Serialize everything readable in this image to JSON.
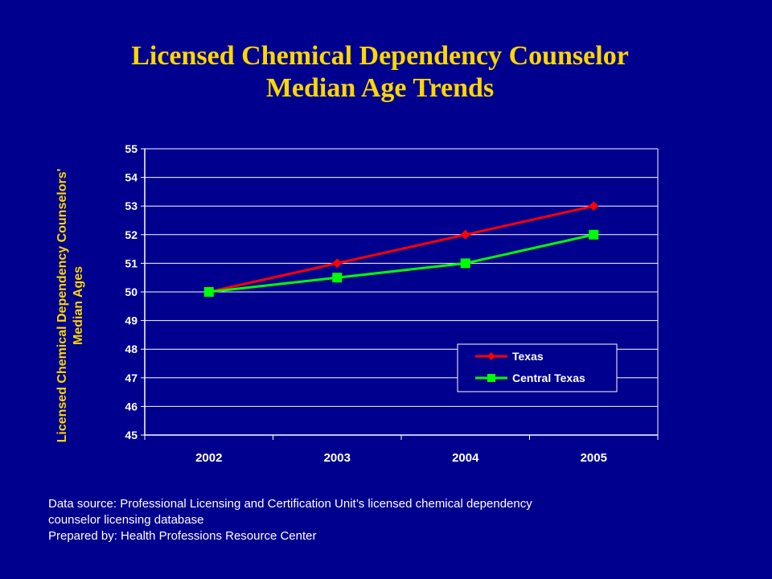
{
  "colors": {
    "background": "#00008f",
    "title": "#ffd700",
    "texas": "#ff0000",
    "central_texas": "#00ff00"
  },
  "chart_data": {
    "type": "line",
    "title_lines": [
      "Licensed Chemical Dependency Counselor",
      "Median Age Trends"
    ],
    "ylabel_lines": [
      "Licensed Chemical Dependency Counselors'",
      "Median Ages"
    ],
    "xlabel": "",
    "categories": [
      "2002",
      "2003",
      "2004",
      "2005"
    ],
    "yticks": [
      "45",
      "46",
      "47",
      "48",
      "49",
      "50",
      "51",
      "52",
      "53",
      "54",
      "55"
    ],
    "ylim": [
      45,
      55
    ],
    "grid": true,
    "legend_position": "bottom-right",
    "series": [
      {
        "name": "Texas",
        "marker": "diamond",
        "color": "#ff0000",
        "values": [
          50,
          51,
          52,
          53
        ]
      },
      {
        "name": "Central Texas",
        "marker": "square",
        "color": "#00ff00",
        "values": [
          50,
          50.5,
          51,
          52
        ]
      }
    ]
  },
  "footer": {
    "line1": "Data source: Professional Licensing and Certification Unit’s licensed chemical dependency",
    "line2": "counselor licensing database",
    "line3": "Prepared by: Health Professions Resource Center"
  }
}
